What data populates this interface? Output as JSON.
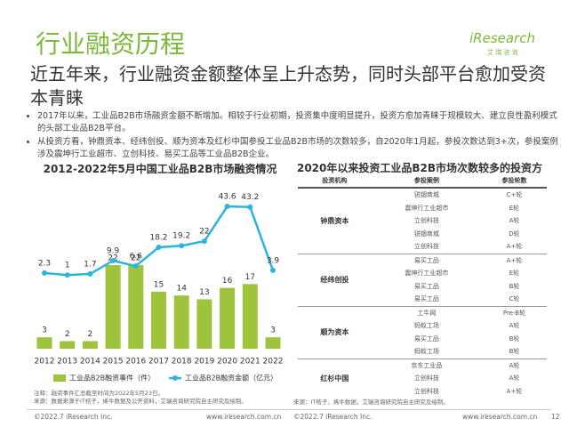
{
  "header": {
    "title": "行业融资历程",
    "logo": "iResearch",
    "logo_sub": "艾 瑞 咨 询"
  },
  "headline": "近五年来，行业融资金额整体呈上升态势，同时头部平台愈加受资本青睐",
  "bullets": [
    "2017年以来，工业品B2B市场融资金额不断增加。相较于行业初期，投资集中度明显提升，投资方愈加青睐于规模较大、建立良性盈利模式的头部工业品B2B平台。",
    "从投资方看，钟鼎资本、经纬创投、顺为资本及红杉中国参投工业品B2B市场的次数较多，自2020年1月起，参投次数达到3+次，参投案例涉及震坤行工业超市、立创科技、易买工品等工业品B2B企业。"
  ],
  "chart_data": {
    "type": "bar-line",
    "title": "2012-2022年5月中国工业品B2B市场融资情况",
    "categories": [
      "2012",
      "2013",
      "2014",
      "2015",
      "2016",
      "2017",
      "2018",
      "2019",
      "2020",
      "2021",
      "2022"
    ],
    "series": [
      {
        "name": "工业品B2B融资事件（件）",
        "color": "#9dc43c",
        "type": "bar",
        "values": [
          3,
          2,
          2,
          22,
          22,
          15,
          14,
          13,
          16,
          17,
          3
        ]
      },
      {
        "name": "工业品B2B融资金额（亿元）",
        "color": "#2bb5de",
        "type": "line",
        "values": [
          2.3,
          1,
          1.7,
          9.9,
          6.6,
          18.2,
          19.2,
          22,
          43.6,
          43.2,
          3.9
        ]
      }
    ],
    "notes": [
      "注释：融资事件汇总截至时间为2022年5月23日。",
      "来源：数据来源于IT桔子，烯牛数据及公开资料，艾瑞咨询研究院自主研究及绘制。"
    ]
  },
  "table": {
    "title": "2020年以来投资工业品B2B市场次数较多的投资方",
    "columns": [
      "投资机构",
      "参投案例",
      "参投轮数"
    ],
    "groups": [
      {
        "investor": "钟鼎资本",
        "rows": [
          [
            "锐锢商城",
            "C+轮"
          ],
          [
            "震坤行工业超市",
            "E轮"
          ],
          [
            "立创科技",
            "A轮"
          ],
          [
            "锐锢商城",
            "D轮"
          ],
          [
            "立创科技",
            "A+轮"
          ]
        ]
      },
      {
        "investor": "经纬创投",
        "rows": [
          [
            "易买工品",
            "A+轮"
          ],
          [
            "震坤行工业超市",
            "E轮"
          ],
          [
            "易买工品",
            "B轮"
          ],
          [
            "易买工品",
            "C轮"
          ]
        ]
      },
      {
        "investor": "顺为资本",
        "rows": [
          [
            "工牛网",
            "Pre-B轮"
          ],
          [
            "蚂蚁工场",
            "A轮"
          ],
          [
            "易买工品",
            "B轮"
          ],
          [
            "蚂蚁工场",
            "B轮"
          ]
        ]
      },
      {
        "investor": "红杉中国",
        "rows": [
          [
            "京东工业品",
            "A轮"
          ],
          [
            "立创科技",
            "A轮"
          ],
          [
            "立创科技",
            "A+轮"
          ]
        ]
      }
    ],
    "source": "来源：IT桔子，烯牛数据，艾瑞咨询研究院自主研究及绘制。"
  },
  "footer": {
    "left_copyright": "©2022.7 iResearch Inc.",
    "left_url": "www.iresearch.com.cn",
    "right_copyright": "©2022.7 iResearch Inc.",
    "right_url": "www.iresearch.com.cn",
    "page": "12"
  }
}
